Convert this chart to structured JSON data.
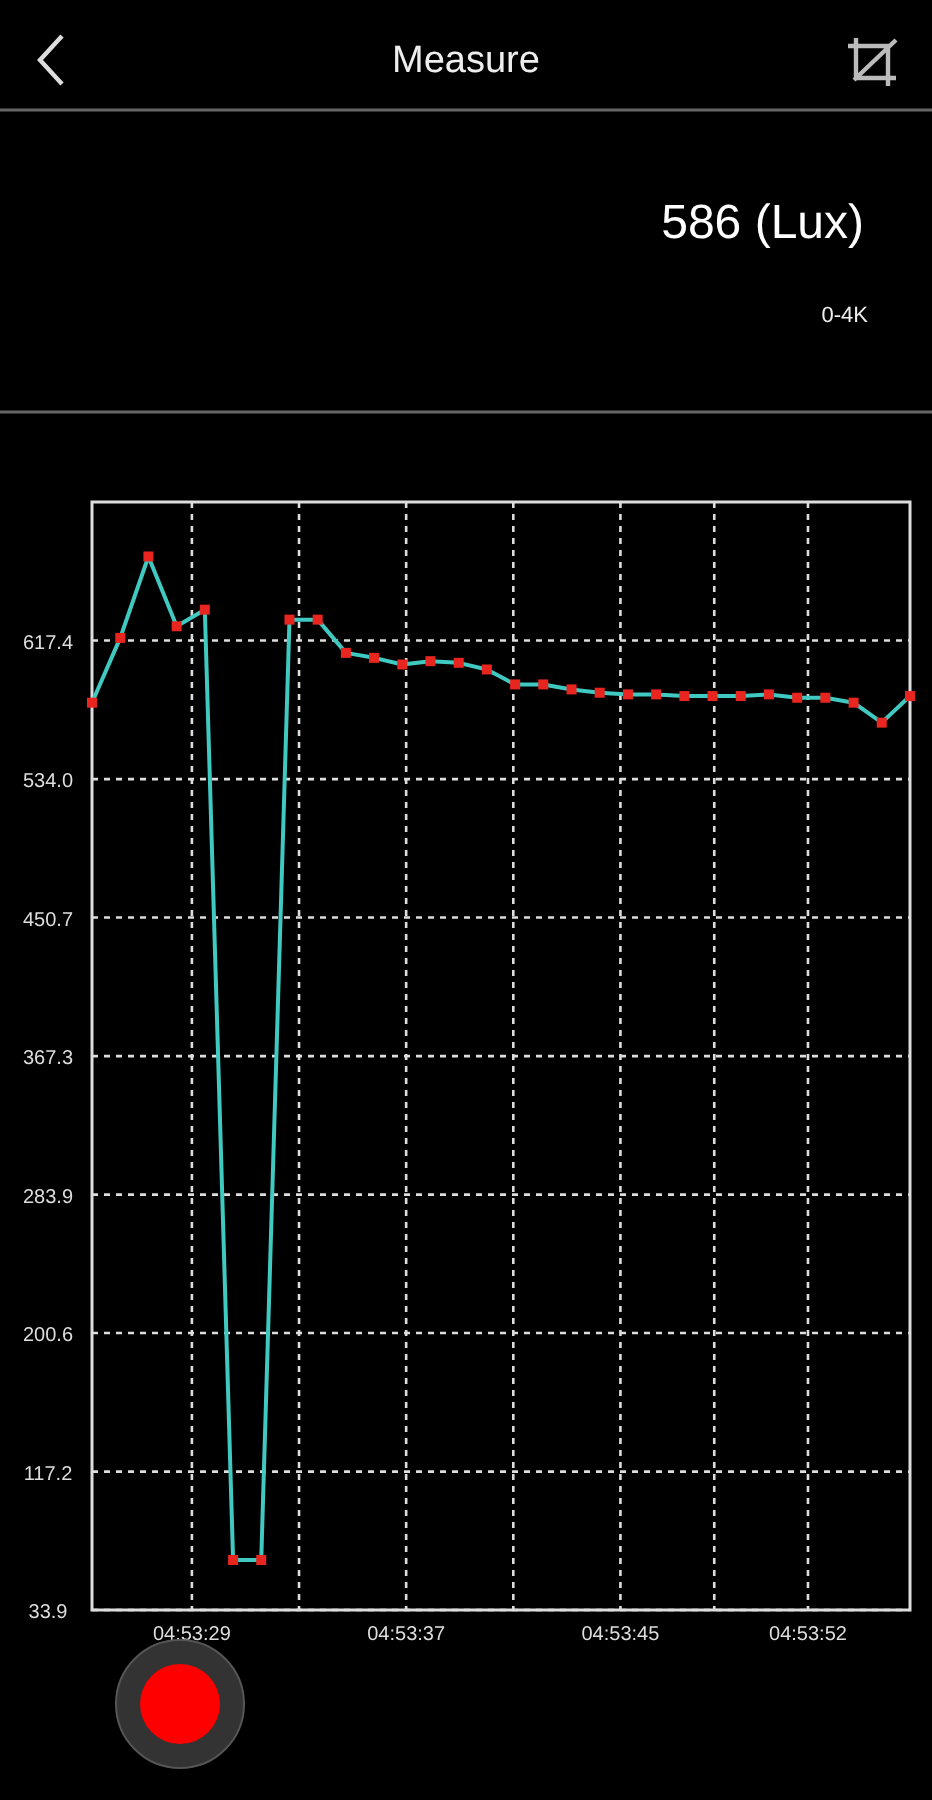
{
  "chart_data": {
    "type": "line",
    "title": "Measure",
    "annotations": [
      "586 (Lux)",
      "0-4K"
    ],
    "x": [
      4.890353,
      4.890646,
      4.890938,
      4.891231,
      4.891523,
      4.891816,
      4.892108,
      4.892401,
      4.892693,
      4.892986,
      4.893278,
      4.893571,
      4.893863,
      4.894156,
      4.894448,
      4.894741,
      4.895033,
      4.895326,
      4.895618,
      4.895911,
      4.896203,
      4.896496,
      4.896788,
      4.897081,
      4.897373,
      4.897666,
      4.897958,
      4.898251,
      4.898543,
      4.898836
    ],
    "series": [
      {
        "color": "#3fc9c1",
        "values": [
          580,
          619,
          668,
          626,
          636,
          64,
          64,
          630,
          630,
          610,
          607,
          603,
          605,
          604,
          600,
          591,
          591,
          588,
          586,
          585,
          585,
          584,
          584,
          584,
          585,
          583,
          583,
          580,
          568,
          584
        ]
      }
    ],
    "xlim": [
      4.890353,
      4.898836
    ],
    "xticks": [
      {
        "value": 4.891389,
        "label": "04:53:29"
      },
      {
        "value": 4.8925,
        "label": null
      },
      {
        "value": 4.893611,
        "label": "04:53:37"
      },
      {
        "value": 4.894722,
        "label": null
      },
      {
        "value": 4.895833,
        "label": "04:53:45"
      },
      {
        "value": 4.896806,
        "label": null
      },
      {
        "value": 4.897778,
        "label": "04:53:52"
      }
    ],
    "ylim": [
      33.9,
      700.8
    ],
    "yticks": [
      {
        "value": 33.9,
        "label": "33.9"
      },
      {
        "value": 117.2,
        "label": "117.2"
      },
      {
        "value": 200.6,
        "label": "200.6"
      },
      {
        "value": 283.9,
        "label": "283.9"
      },
      {
        "value": 367.3,
        "label": "367.3"
      },
      {
        "value": 450.7,
        "label": "450.7"
      },
      {
        "value": 534.0,
        "label": "534.0"
      },
      {
        "value": 617.4,
        "label": "617.4"
      }
    ],
    "grid": true,
    "marker": "square",
    "line_style": "solid"
  }
}
